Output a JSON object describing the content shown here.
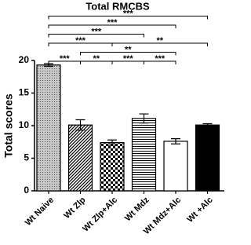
{
  "chart_data": {
    "type": "bar",
    "title": "Total RMCBS",
    "y_label": "Total scores",
    "categories": [
      "Wt Naive",
      "Wt Zlp",
      "Wt Zlp+Alc",
      "Wt Mdz",
      "Wt Mdz+Alc",
      "Wt +Alc"
    ],
    "values": [
      19.3,
      10.1,
      7.4,
      11.1,
      7.6,
      10.1
    ],
    "errors": [
      0.2,
      0.8,
      0.4,
      0.7,
      0.4,
      0.2
    ],
    "patterns": [
      "dots",
      "diagonal",
      "checker",
      "horizontal",
      "none",
      "solid"
    ],
    "ylim": [
      0,
      20
    ],
    "yticks": [
      0,
      5,
      10,
      15,
      20
    ],
    "brackets": [
      {
        "from": "Wt Naive",
        "to": "Wt Zlp",
        "label": "***"
      },
      {
        "from": "Wt Zlp",
        "to": "Wt Zlp+Alc",
        "label": "**"
      },
      {
        "from": "Wt Zlp+Alc",
        "to": "Wt Mdz",
        "label": "***"
      },
      {
        "from": "Wt Mdz",
        "to": "Wt Mdz+Alc",
        "label": "***"
      },
      {
        "from": "Wt Zlp",
        "to": "Wt Mdz+Alc",
        "label": "**"
      },
      {
        "from": "Wt Naive",
        "to": "Wt Zlp+Alc",
        "label": "***"
      },
      {
        "from": "Wt Zlp+Alc",
        "to": "Wt +Alc",
        "label": "**"
      },
      {
        "from": "Wt Naive",
        "to": "Wt Mdz",
        "label": "***"
      },
      {
        "from": "Wt Naive",
        "to": "Wt Mdz+Alc",
        "label": "***"
      },
      {
        "from": "Wt Naive",
        "to": "Wt +Alc",
        "label": "***"
      }
    ]
  }
}
